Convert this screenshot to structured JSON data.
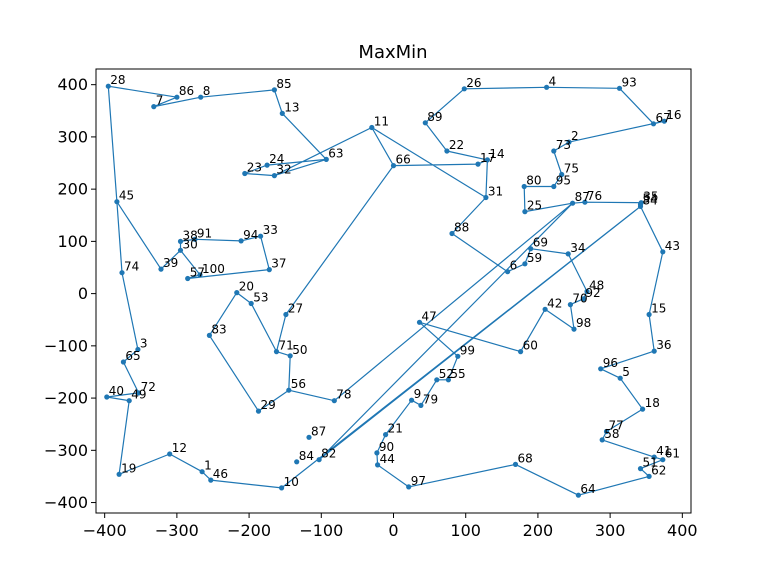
{
  "chart_data": {
    "type": "line",
    "title": "MaxMin",
    "xlabel": "",
    "ylabel": "",
    "xlim": [
      -412,
      412
    ],
    "ylim": [
      -420,
      430
    ],
    "xticks": [
      -400,
      -300,
      -200,
      -100,
      0,
      100,
      200,
      300,
      400
    ],
    "yticks": [
      -400,
      -300,
      -200,
      -100,
      0,
      100,
      200,
      300,
      400
    ],
    "grid": false,
    "legend": "none",
    "line_color": "#1f77b4",
    "marker_color": "#1f77b4",
    "points": [
      {
        "label": "28",
        "x": -395,
        "y": 397
      },
      {
        "label": "86",
        "x": -300,
        "y": 376
      },
      {
        "label": "7",
        "x": -332,
        "y": 358
      },
      {
        "label": "8",
        "x": -267,
        "y": 376
      },
      {
        "label": "85",
        "x": -165,
        "y": 390
      },
      {
        "label": "13",
        "x": -154,
        "y": 345
      },
      {
        "label": "63",
        "x": -93,
        "y": 257
      },
      {
        "label": "24",
        "x": -175,
        "y": 246
      },
      {
        "label": "23",
        "x": -206,
        "y": 230
      },
      {
        "label": "32",
        "x": -165,
        "y": 226
      },
      {
        "label": "11",
        "x": -30,
        "y": 318
      },
      {
        "label": "66",
        "x": 0,
        "y": 245
      },
      {
        "label": "17",
        "x": 117,
        "y": 248
      },
      {
        "label": "14",
        "x": 130,
        "y": 256
      },
      {
        "label": "22",
        "x": 74,
        "y": 273
      },
      {
        "label": "89",
        "x": 44,
        "y": 327
      },
      {
        "label": "26",
        "x": 98,
        "y": 392
      },
      {
        "label": "4",
        "x": 212,
        "y": 395
      },
      {
        "label": "93",
        "x": 313,
        "y": 393
      },
      {
        "label": "67",
        "x": 360,
        "y": 325
      },
      {
        "label": "16",
        "x": 375,
        "y": 330
      },
      {
        "label": "2",
        "x": 243,
        "y": 290
      },
      {
        "label": "73",
        "x": 222,
        "y": 273
      },
      {
        "label": "75",
        "x": 233,
        "y": 228
      },
      {
        "label": "95",
        "x": 222,
        "y": 205
      },
      {
        "label": "80",
        "x": 181,
        "y": 205
      },
      {
        "label": "25",
        "x": 182,
        "y": 157
      },
      {
        "label": "87",
        "x": 248,
        "y": 173
      },
      {
        "label": "76",
        "x": 265,
        "y": 175
      },
      {
        "label": "35",
        "x": 343,
        "y": 174
      },
      {
        "label": "84",
        "x": 342,
        "y": 167
      },
      {
        "label": "43",
        "x": 373,
        "y": 80
      },
      {
        "label": "15",
        "x": 354,
        "y": -40
      },
      {
        "label": "36",
        "x": 361,
        "y": -110
      },
      {
        "label": "96",
        "x": 287,
        "y": -144
      },
      {
        "label": "5",
        "x": 314,
        "y": -162
      },
      {
        "label": "18",
        "x": 345,
        "y": -221
      },
      {
        "label": "77",
        "x": 295,
        "y": -264
      },
      {
        "label": "58",
        "x": 289,
        "y": -280
      },
      {
        "label": "41",
        "x": 361,
        "y": -313
      },
      {
        "label": "61",
        "x": 373,
        "y": -318
      },
      {
        "label": "51",
        "x": 342,
        "y": -335
      },
      {
        "label": "62",
        "x": 354,
        "y": -350
      },
      {
        "label": "64",
        "x": 256,
        "y": -386
      },
      {
        "label": "68",
        "x": 169,
        "y": -327
      },
      {
        "label": "97",
        "x": 21,
        "y": -370
      },
      {
        "label": "44",
        "x": -22,
        "y": -328
      },
      {
        "label": "90",
        "x": -23,
        "y": -305
      },
      {
        "label": "21",
        "x": -11,
        "y": -270
      },
      {
        "label": "9",
        "x": 25,
        "y": -204
      },
      {
        "label": "79",
        "x": 38,
        "y": -214
      },
      {
        "label": "52",
        "x": 60,
        "y": -165
      },
      {
        "label": "55",
        "x": 76,
        "y": -165
      },
      {
        "label": "99",
        "x": 89,
        "y": -120
      },
      {
        "label": "47",
        "x": 36,
        "y": -55
      },
      {
        "label": "60",
        "x": 176,
        "y": -111
      },
      {
        "label": "42",
        "x": 210,
        "y": -30
      },
      {
        "label": "98",
        "x": 250,
        "y": -68
      },
      {
        "label": "70",
        "x": 245,
        "y": -21
      },
      {
        "label": "92",
        "x": 263,
        "y": -10
      },
      {
        "label": "48",
        "x": 268,
        "y": 4
      },
      {
        "label": "34",
        "x": 242,
        "y": 76
      },
      {
        "label": "69",
        "x": 190,
        "y": 86
      },
      {
        "label": "59",
        "x": 182,
        "y": 57
      },
      {
        "label": "6",
        "x": 158,
        "y": 42
      },
      {
        "label": "88",
        "x": 81,
        "y": 115
      },
      {
        "label": "31",
        "x": 128,
        "y": 184
      },
      {
        "label": "27",
        "x": -149,
        "y": -40
      },
      {
        "label": "20",
        "x": -217,
        "y": 2
      },
      {
        "label": "53",
        "x": -197,
        "y": -19
      },
      {
        "label": "71",
        "x": -162,
        "y": -111
      },
      {
        "label": "50",
        "x": -143,
        "y": -119
      },
      {
        "label": "56",
        "x": -145,
        "y": -185
      },
      {
        "label": "29",
        "x": -187,
        "y": -225
      },
      {
        "label": "83",
        "x": -255,
        "y": -80
      },
      {
        "label": "37",
        "x": -172,
        "y": 46
      },
      {
        "label": "57",
        "x": -285,
        "y": 29
      },
      {
        "label": "100",
        "x": -268,
        "y": 36
      },
      {
        "label": "30",
        "x": -295,
        "y": 83
      },
      {
        "label": "38",
        "x": -295,
        "y": 100
      },
      {
        "label": "91",
        "x": -275,
        "y": 104
      },
      {
        "label": "94",
        "x": -211,
        "y": 101
      },
      {
        "label": "33",
        "x": -184,
        "y": 110
      },
      {
        "label": "39",
        "x": -322,
        "y": 47
      },
      {
        "label": "45",
        "x": -383,
        "y": 176
      },
      {
        "label": "74",
        "x": -376,
        "y": 40
      },
      {
        "label": "3",
        "x": -354,
        "y": -107
      },
      {
        "label": "65",
        "x": -374,
        "y": -131
      },
      {
        "label": "72",
        "x": -353,
        "y": -190
      },
      {
        "label": "40",
        "x": -397,
        "y": -198
      },
      {
        "label": "49",
        "x": -366,
        "y": -205
      },
      {
        "label": "19",
        "x": -380,
        "y": -346
      },
      {
        "label": "12",
        "x": -310,
        "y": -307
      },
      {
        "label": "1",
        "x": -265,
        "y": -341
      },
      {
        "label": "46",
        "x": -253,
        "y": -357
      },
      {
        "label": "10",
        "x": -155,
        "y": -372
      },
      {
        "label": "84",
        "x": -134,
        "y": -322
      },
      {
        "label": "82",
        "x": -103,
        "y": -318
      },
      {
        "label": "87",
        "x": -117,
        "y": -275
      },
      {
        "label": "78",
        "x": -82,
        "y": -205
      },
      {
        "label": "54",
        "x": 342,
        "y": 171
      }
    ],
    "route": [
      "28",
      "86",
      "7",
      "8",
      "85",
      "13",
      "63",
      "24",
      "23",
      "32",
      "11",
      "66",
      "17",
      "14",
      "22",
      "89",
      "26",
      "4",
      "93",
      "67",
      "16",
      "2",
      "73",
      "75",
      "95",
      "80",
      "25",
      "87",
      "76",
      "35",
      "84",
      "43",
      "15",
      "36",
      "96",
      "5",
      "18",
      "77",
      "58",
      "41",
      "61",
      "51",
      "62",
      "64",
      "68",
      "97",
      "44",
      "90",
      "21",
      "9",
      "79",
      "52",
      "55",
      "99",
      "47",
      "60",
      "42",
      "98",
      "70",
      "92",
      "48",
      "34",
      "69",
      "59",
      "6",
      "88",
      "31",
      "11"
    ],
    "route2": [
      "63",
      "32"
    ],
    "route3": [
      "66",
      "27",
      "71",
      "50",
      "56",
      "29",
      "83",
      "20",
      "53",
      "71"
    ],
    "route4": [
      "31",
      "14"
    ],
    "route5": [
      "28",
      "45",
      "39",
      "30",
      "38",
      "91",
      "94",
      "33",
      "37",
      "57",
      "100",
      "30"
    ],
    "route6": [
      "45",
      "74",
      "3",
      "65",
      "72",
      "40",
      "49",
      "19",
      "12",
      "1",
      "46",
      "10",
      "84",
      "82",
      "87",
      "78",
      "56"
    ]
  }
}
